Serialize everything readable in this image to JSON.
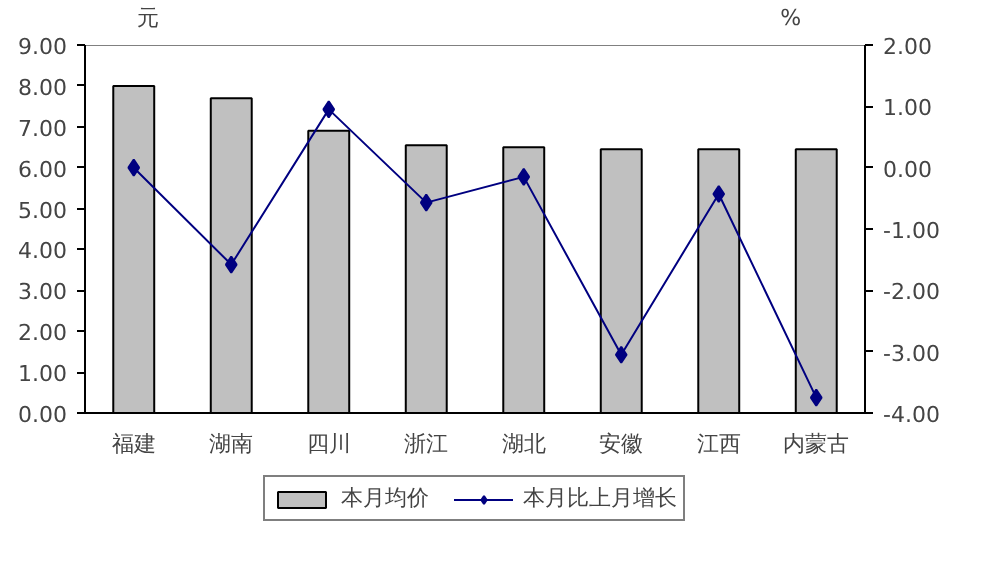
{
  "chart_data": {
    "type": "bar",
    "ylabel": "元",
    "y2label": "%",
    "categories": [
      "福建",
      "湖南",
      "四川",
      "浙江",
      "湖北",
      "安徽",
      "江西",
      "内蒙古"
    ],
    "series": [
      {
        "name": "本月均价",
        "color": "#c0c0c0",
        "values": [
          8.0,
          7.7,
          6.9,
          6.55,
          6.5,
          6.45,
          6.45,
          6.45
        ]
      },
      {
        "name": "本月比上月增长",
        "type": "line",
        "axis": "y2",
        "color": "#000080",
        "marker": "diamond",
        "values": [
          0.0,
          -1.58,
          0.95,
          -0.57,
          -0.15,
          -3.05,
          -0.43,
          -3.75
        ]
      }
    ],
    "ylim": [
      0,
      9
    ],
    "yticks": [
      {
        "value": 0,
        "label": "0.00"
      },
      {
        "value": 1,
        "label": "1.00"
      },
      {
        "value": 2,
        "label": "2.00"
      },
      {
        "value": 3,
        "label": "3.00"
      },
      {
        "value": 4,
        "label": "4.00"
      },
      {
        "value": 5,
        "label": "5.00"
      },
      {
        "value": 6,
        "label": "6.00"
      },
      {
        "value": 7,
        "label": "7.00"
      },
      {
        "value": 8,
        "label": "8.00"
      },
      {
        "value": 9,
        "label": "9.00"
      }
    ],
    "y2lim": [
      -4,
      2
    ],
    "y2ticks": [
      {
        "value": -4,
        "label": "-4.00"
      },
      {
        "value": -3,
        "label": "-3.00"
      },
      {
        "value": -2,
        "label": "-2.00"
      },
      {
        "value": -1,
        "label": "-1.00"
      },
      {
        "value": 0,
        "label": "0.00"
      },
      {
        "value": 1,
        "label": "1.00"
      },
      {
        "value": 2,
        "label": "2.00"
      }
    ],
    "grid": false,
    "legend": "bottom"
  }
}
